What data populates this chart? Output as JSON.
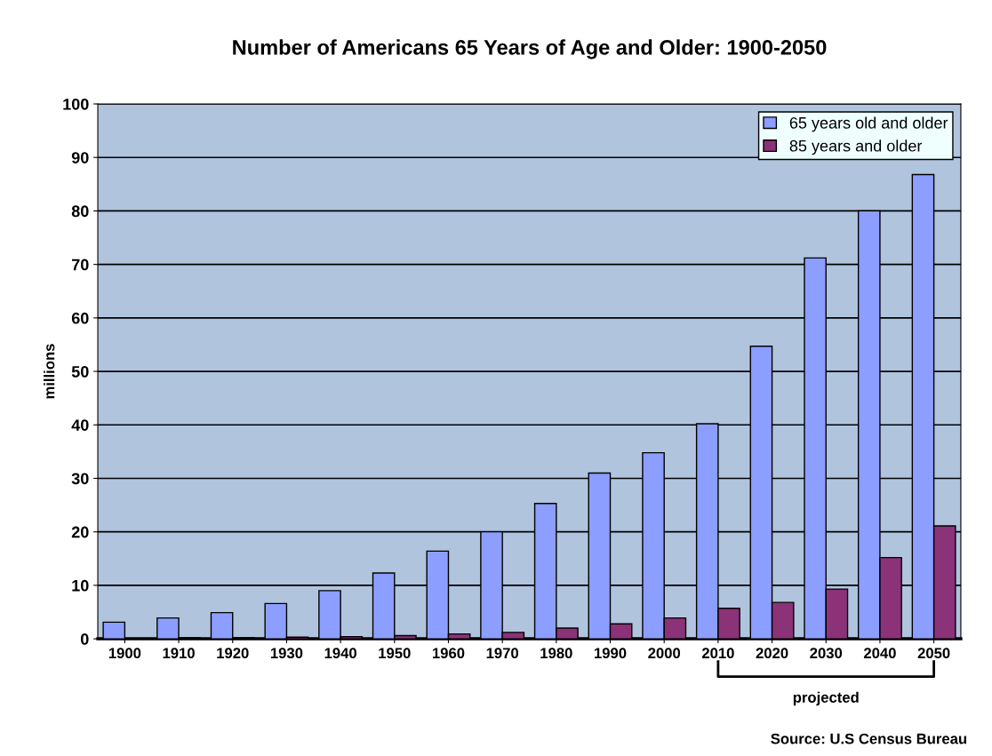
{
  "chart_data": {
    "type": "bar",
    "title": "Number of Americans 65 Years of Age and Older: 1900-2050",
    "ylabel": "millions",
    "categories": [
      "1900",
      "1910",
      "1920",
      "1930",
      "1940",
      "1950",
      "1960",
      "1970",
      "1980",
      "1990",
      "2000",
      "2010",
      "2020",
      "2030",
      "2040",
      "2050"
    ],
    "series": [
      {
        "name": "65 years old and older",
        "color": "#8c9eff",
        "values": [
          3.1,
          3.9,
          4.9,
          6.6,
          9.0,
          12.3,
          16.4,
          20.0,
          25.3,
          31.0,
          34.8,
          40.2,
          54.7,
          71.2,
          80.0,
          86.8
        ]
      },
      {
        "name": "85 years and older",
        "color": "#8b3278",
        "values": [
          null,
          0.2,
          0.2,
          0.3,
          0.4,
          0.6,
          0.9,
          1.2,
          2.0,
          2.8,
          3.9,
          5.7,
          6.8,
          9.3,
          15.2,
          21.1
        ]
      }
    ],
    "ylim": [
      0,
      100
    ],
    "yticks": [
      0,
      10,
      20,
      30,
      40,
      50,
      60,
      70,
      80,
      90,
      100
    ],
    "grid": "y",
    "legend": "top right",
    "annotations": [
      "projected",
      "Source: U.S Census Bureau"
    ]
  }
}
